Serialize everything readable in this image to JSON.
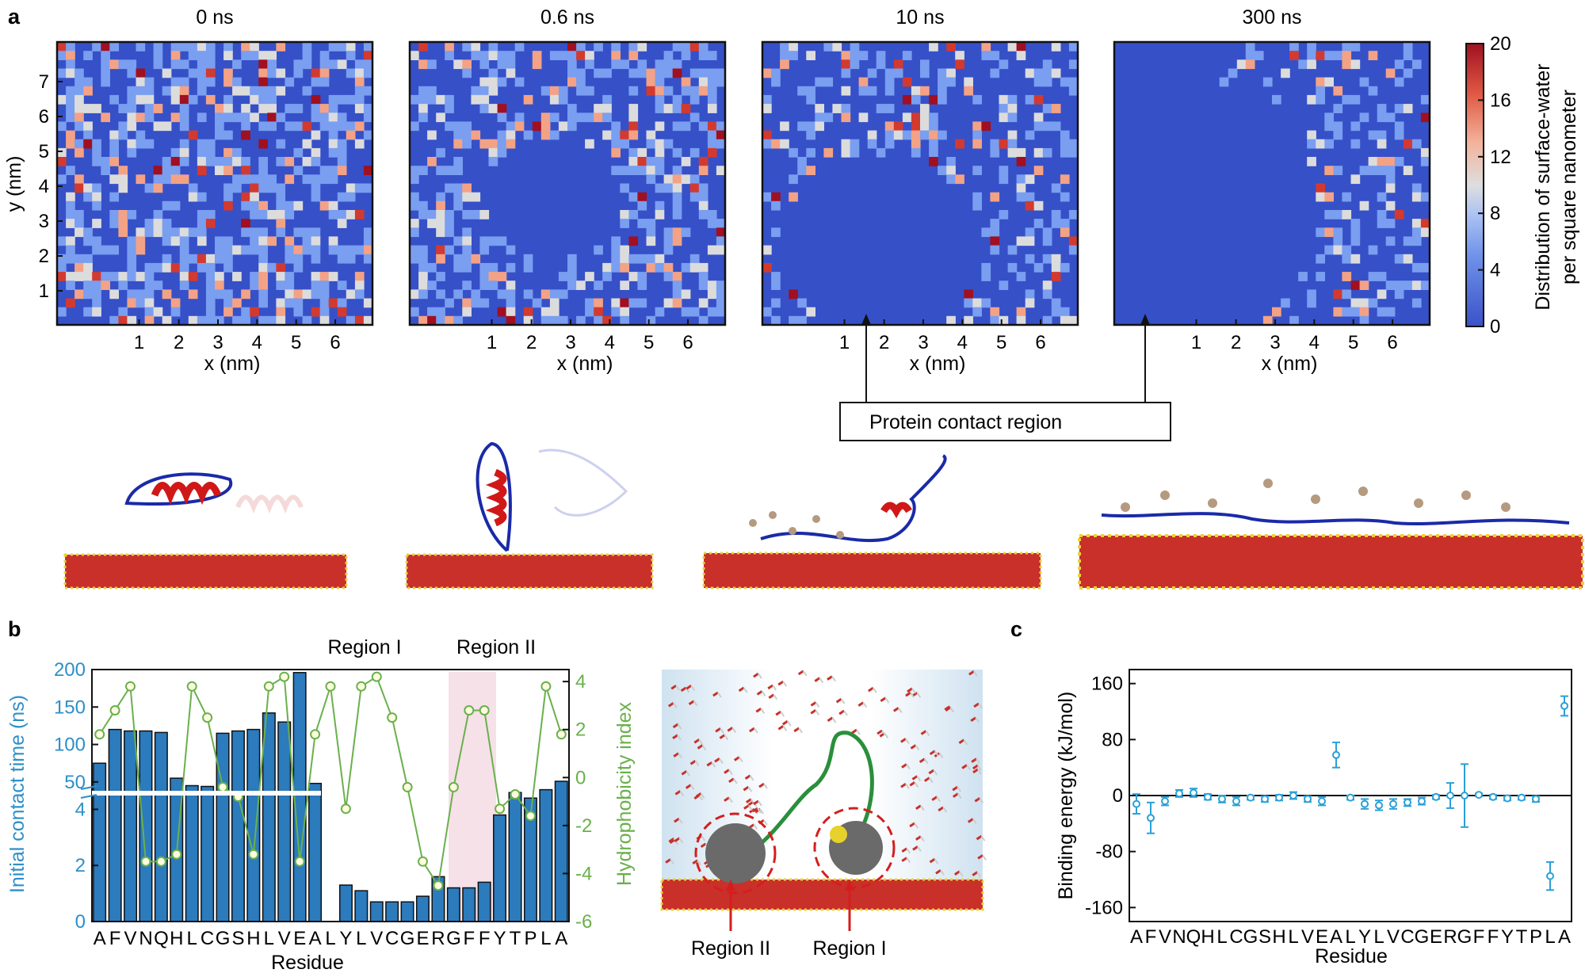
{
  "panel_labels": {
    "a": "a",
    "b": "b",
    "c": "c"
  },
  "panel_a": {
    "time_labels": [
      "0 ns",
      "0.6 ns",
      "10 ns",
      "300 ns"
    ],
    "xlabel": "x (nm)",
    "ylabel": "y (nm)",
    "x_ticks": [
      "1",
      "2",
      "3",
      "4",
      "5",
      "6"
    ],
    "y_ticks": [
      "1",
      "2",
      "3",
      "4",
      "5",
      "6",
      "7"
    ],
    "colorbar": {
      "label_line1": "Distribution of surface-water",
      "label_line2": "per square nanometer",
      "ticks": [
        "0",
        "4",
        "8",
        "12",
        "16",
        "20"
      ],
      "colors": [
        "#3650c8",
        "#7a9ef0",
        "#dcdcdc",
        "#f4a285",
        "#d23a30",
        "#a01020"
      ]
    },
    "annotation": "Protein contact region"
  },
  "panel_b": {
    "region_labels": [
      "Region I",
      "Region II"
    ],
    "xlabel": "Residue",
    "ylabel_left": "Initial contact time (ns)",
    "ylabel_right": "Hydrophobicity index",
    "left_ticks_top": [
      "50",
      "100",
      "150",
      "200"
    ],
    "left_ticks_bottom": [
      "0",
      "2",
      "4"
    ],
    "right_ticks": [
      "-6",
      "-4",
      "-2",
      "0",
      "2",
      "4"
    ],
    "inset_labels": [
      "Region II",
      "Region I"
    ],
    "colors": {
      "bar": "#2b7bbd",
      "line": "#6ab04c",
      "left_axis": "#2e8fc8",
      "right_axis": "#6ab04c",
      "shade": "#f6e1e8"
    }
  },
  "panel_c": {
    "xlabel": "Residue",
    "ylabel": "Binding energy (kJ/mol)",
    "y_ticks": [
      "160",
      "80",
      "0",
      "-80",
      "-160"
    ],
    "color": "#2aa0d8"
  },
  "residues": [
    "A",
    "F",
    "V",
    "N",
    "Q",
    "H",
    "L",
    "C",
    "G",
    "S",
    "H",
    "L",
    "V",
    "E",
    "A",
    "L",
    "Y",
    "L",
    "V",
    "C",
    "G",
    "E",
    "R",
    "G",
    "F",
    "F",
    "Y",
    "T",
    "P",
    "L",
    "A"
  ],
  "residue_string": "AFVNQHLCGSHLVEAL YLVCGERGFFYTPLA",
  "chart_data": [
    {
      "type": "bar",
      "title": "",
      "categories": [
        "A",
        "F",
        "V",
        "N",
        "Q",
        "H",
        "L",
        "C",
        "G",
        "S",
        "H",
        "L",
        "V",
        "E",
        "A",
        "L",
        "Y",
        "L",
        "V",
        "C",
        "G",
        "E",
        "R",
        "G",
        "F",
        "F",
        "Y",
        "T",
        "P",
        "L",
        "A"
      ],
      "series": [
        {
          "name": "Initial contact time (ns)",
          "values": [
            75,
            120,
            118,
            118,
            116,
            55,
            45,
            44,
            115,
            118,
            120,
            142,
            130,
            196,
            48,
            0,
            1.3,
            1.1,
            0.7,
            0.7,
            0.7,
            0.9,
            1.6,
            1.2,
            1.2,
            1.4,
            3.8,
            4.6,
            4.4,
            4.7,
            5.0
          ]
        },
        {
          "name": "Hydrophobicity index",
          "values": [
            1.8,
            2.8,
            3.8,
            -3.5,
            -3.5,
            -3.2,
            3.8,
            2.5,
            -0.4,
            -0.8,
            -3.2,
            3.8,
            4.2,
            -3.5,
            1.8,
            3.8,
            -1.3,
            3.8,
            4.2,
            2.5,
            -0.4,
            -3.5,
            -4.5,
            -0.4,
            2.8,
            2.8,
            -1.3,
            -0.7,
            -1.6,
            3.8,
            1.8
          ]
        }
      ],
      "highlight_region": [
        "G",
        "F",
        "F"
      ],
      "xlabel": "Residue",
      "ylabel": "Initial contact time (ns)",
      "y2label": "Hydrophobicity index",
      "ylim_break": [
        [
          0,
          5
        ],
        [
          50,
          200
        ]
      ],
      "y2lim": [
        -6,
        4.5
      ]
    },
    {
      "type": "scatter",
      "title": "",
      "categories": [
        "A",
        "F",
        "V",
        "N",
        "Q",
        "H",
        "L",
        "C",
        "G",
        "S",
        "H",
        "L",
        "V",
        "E",
        "A",
        "L",
        "Y",
        "L",
        "V",
        "C",
        "G",
        "E",
        "R",
        "G",
        "F",
        "F",
        "Y",
        "T",
        "P",
        "L",
        "A"
      ],
      "values": [
        -12,
        -32,
        -8,
        3,
        4,
        -2,
        -5,
        -8,
        -3,
        -5,
        -3,
        0,
        -5,
        -8,
        58,
        -3,
        -12,
        -14,
        -12,
        -10,
        -8,
        -2,
        0,
        0,
        1,
        -2,
        -4,
        -3,
        -5,
        -115,
        128
      ],
      "errors": [
        14,
        22,
        6,
        5,
        6,
        4,
        5,
        6,
        3,
        4,
        4,
        5,
        4,
        6,
        18,
        3,
        7,
        7,
        7,
        5,
        5,
        3,
        18,
        45,
        2,
        3,
        3,
        3,
        4,
        20,
        14
      ],
      "xlabel": "Residue",
      "ylabel": "Binding energy (kJ/mol)",
      "ylim": [
        -180,
        180
      ]
    }
  ]
}
